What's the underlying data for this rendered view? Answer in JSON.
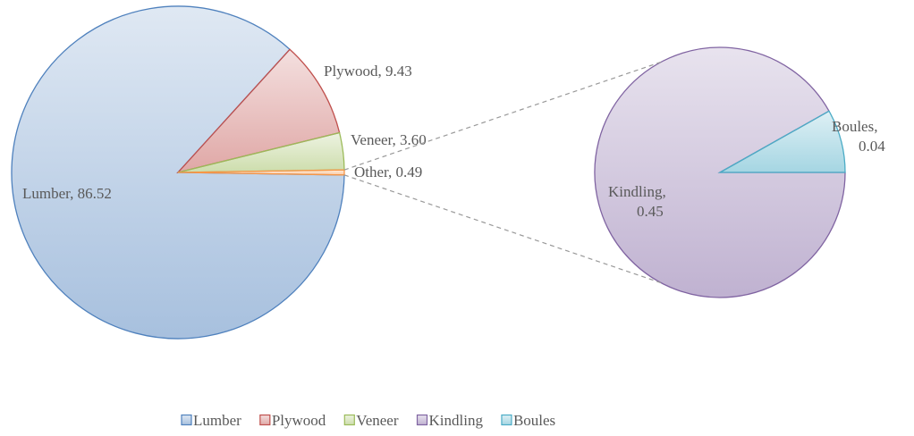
{
  "chart_data": [
    {
      "type": "pie",
      "categories": [
        "Lumber",
        "Plywood",
        "Veneer",
        "Other"
      ],
      "values": [
        86.52,
        9.43,
        3.6,
        0.49
      ],
      "value_labels": [
        "Lumber, 86.52",
        "Plywood, 9.43",
        "Veneer, 3.60",
        "Other, 0.49"
      ],
      "colors": [
        "#4f81bd",
        "#c0504d",
        "#9bbb59",
        "#f79646"
      ]
    },
    {
      "type": "pie",
      "categories": [
        "Kindling",
        "Boules"
      ],
      "values": [
        0.45,
        0.04
      ],
      "value_labels": [
        "Kindling, 0.45",
        "Boules, 0.04"
      ],
      "colors": [
        "#8064a2",
        "#4bacc6"
      ]
    }
  ]
}
